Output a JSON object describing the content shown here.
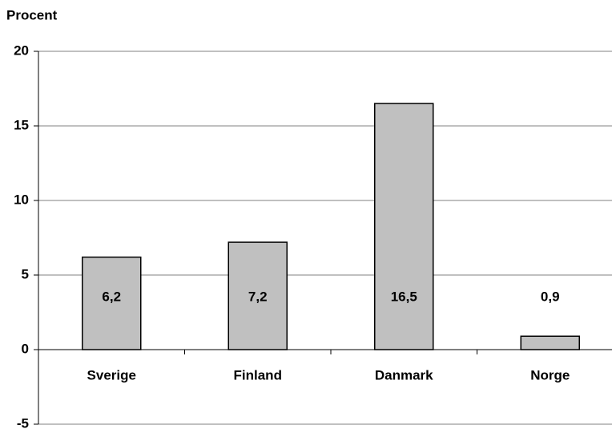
{
  "chart_data": {
    "type": "bar",
    "y_label": "Procent",
    "categories": [
      "Sverige",
      "Finland",
      "Danmark",
      "Norge"
    ],
    "values": [
      6.2,
      7.2,
      16.5,
      0.9
    ],
    "value_labels": [
      "6,2",
      "7,2",
      "16,5",
      "0,9"
    ],
    "color": "#c0c0c0",
    "ylim": [
      -5,
      20
    ],
    "yticks": [
      -5,
      0,
      5,
      10,
      15,
      20
    ],
    "grid": true
  }
}
